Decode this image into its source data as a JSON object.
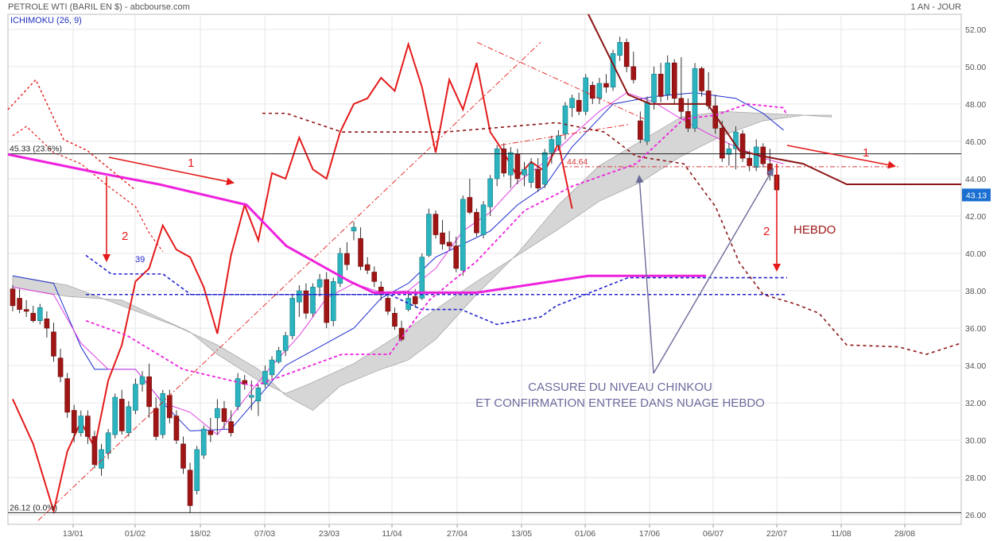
{
  "header": {
    "title": "PETROLE WTI (BARIL EN $) - abcbourse.com",
    "period": "1 AN - JOUR",
    "indicator": "ICHIMOKU (26, 9)"
  },
  "chart_data": {
    "type": "candlestick",
    "ylim": [
      25.5,
      52.8
    ],
    "y_ticks": [
      26,
      28,
      30,
      32,
      34,
      36,
      38,
      40,
      42,
      44,
      46,
      48,
      50,
      52
    ],
    "x_ticks": [
      "13/01",
      "01/02",
      "18/02",
      "07/03",
      "23/03",
      "11/04",
      "27/04",
      "13/05",
      "01/06",
      "17/06",
      "06/07",
      "22/07",
      "11/08",
      "28/08"
    ],
    "last_price": 43.13,
    "levels": [
      {
        "label": "45.33  (23.6%)",
        "value": 45.33
      },
      {
        "label": "26.12  (0.0%)",
        "value": 26.12
      },
      {
        "label": "44.64",
        "value": 44.64
      },
      {
        "label": "39",
        "value": 39
      }
    ],
    "candles": [
      [
        38.1,
        38.3,
        36.9,
        37.2
      ],
      [
        37.6,
        38.1,
        36.8,
        37.0
      ],
      [
        37.0,
        37.5,
        36.6,
        36.9
      ],
      [
        36.8,
        37.2,
        36.3,
        36.4
      ],
      [
        36.4,
        37.3,
        36.2,
        37.1
      ],
      [
        36.5,
        36.9,
        35.5,
        36.0
      ],
      [
        35.8,
        36.3,
        34.2,
        34.5
      ],
      [
        34.4,
        34.9,
        33.1,
        33.4
      ],
      [
        33.3,
        33.6,
        31.2,
        31.5
      ],
      [
        31.6,
        31.9,
        29.9,
        30.4
      ],
      [
        30.4,
        31.6,
        30.2,
        31.3
      ],
      [
        31.3,
        31.6,
        29.8,
        30.2
      ],
      [
        30.2,
        30.5,
        28.5,
        28.7
      ],
      [
        28.5,
        29.8,
        28.1,
        29.5
      ],
      [
        29.3,
        30.6,
        29.0,
        30.4
      ],
      [
        30.3,
        32.5,
        30.1,
        32.3
      ],
      [
        32.2,
        32.7,
        30.3,
        30.5
      ],
      [
        30.4,
        32.1,
        30.2,
        31.8
      ],
      [
        31.6,
        33.3,
        31.4,
        33.0
      ],
      [
        33.0,
        33.7,
        32.6,
        33.4
      ],
      [
        33.4,
        34.1,
        31.2,
        31.8
      ],
      [
        31.7,
        32.3,
        30.0,
        30.2
      ],
      [
        30.3,
        32.7,
        30.1,
        32.5
      ],
      [
        32.4,
        32.7,
        30.9,
        31.2
      ],
      [
        31.3,
        31.6,
        29.8,
        30.0
      ],
      [
        29.8,
        30.2,
        28.2,
        28.5
      ],
      [
        28.4,
        28.8,
        26.1,
        26.5
      ],
      [
        27.3,
        29.7,
        27.1,
        29.5
      ],
      [
        29.2,
        30.8,
        29.0,
        30.6
      ],
      [
        30.5,
        31.2,
        29.9,
        30.3
      ],
      [
        31.2,
        32.2,
        30.3,
        31.7
      ],
      [
        31.7,
        32.1,
        30.6,
        31.0
      ],
      [
        31.0,
        31.6,
        30.2,
        30.4
      ],
      [
        31.8,
        33.6,
        31.6,
        33.3
      ],
      [
        33.2,
        33.5,
        32.7,
        33.0
      ],
      [
        32.3,
        33.2,
        31.6,
        32.4
      ],
      [
        32.1,
        33.0,
        31.3,
        32.8
      ],
      [
        33.0,
        34.0,
        32.8,
        33.7
      ],
      [
        33.5,
        34.5,
        33.3,
        34.3
      ],
      [
        34.2,
        35.0,
        34.1,
        34.8
      ],
      [
        34.8,
        35.8,
        34.5,
        35.6
      ],
      [
        35.6,
        37.8,
        35.4,
        37.6
      ],
      [
        37.4,
        38.3,
        36.6,
        38.0
      ],
      [
        38.0,
        38.4,
        36.5,
        36.8
      ],
      [
        36.8,
        38.4,
        36.6,
        38.2
      ],
      [
        38.2,
        38.9,
        37.7,
        38.6
      ],
      [
        38.6,
        39.0,
        36.0,
        36.3
      ],
      [
        36.4,
        38.7,
        36.1,
        38.5
      ],
      [
        38.4,
        40.3,
        38.2,
        40.0
      ],
      [
        40.0,
        40.6,
        39.1,
        39.4
      ],
      [
        41.2,
        41.7,
        40.7,
        41.4
      ],
      [
        40.8,
        41.4,
        39.1,
        39.3
      ],
      [
        39.4,
        39.8,
        38.9,
        39.1
      ],
      [
        39.0,
        39.3,
        38.2,
        38.5
      ],
      [
        38.2,
        38.5,
        37.5,
        37.8
      ],
      [
        37.6,
        37.9,
        36.7,
        36.9
      ],
      [
        36.8,
        37.1,
        35.9,
        36.1
      ],
      [
        36.0,
        36.4,
        35.3,
        35.4
      ],
      [
        37.0,
        38.0,
        36.9,
        37.6
      ],
      [
        37.7,
        38.1,
        37.1,
        37.3
      ],
      [
        37.6,
        40.0,
        37.5,
        39.8
      ],
      [
        39.9,
        42.4,
        39.8,
        42.1
      ],
      [
        42.1,
        42.3,
        40.8,
        41.0
      ],
      [
        41.1,
        41.8,
        40.2,
        40.5
      ],
      [
        40.6,
        41.2,
        40.2,
        40.4
      ],
      [
        40.4,
        40.9,
        39.0,
        39.2
      ],
      [
        39.1,
        43.1,
        38.8,
        42.9
      ],
      [
        43.0,
        44.0,
        42.1,
        42.2
      ],
      [
        42.2,
        42.4,
        40.9,
        41.1
      ],
      [
        41.0,
        42.8,
        40.8,
        42.6
      ],
      [
        42.5,
        44.2,
        42.0,
        44.0
      ],
      [
        44.0,
        45.8,
        43.6,
        45.6
      ],
      [
        45.6,
        45.9,
        44.1,
        44.3
      ],
      [
        44.2,
        45.7,
        43.5,
        45.4
      ],
      [
        45.3,
        45.6,
        43.7,
        44.0
      ],
      [
        44.2,
        44.9,
        43.6,
        44.5
      ],
      [
        43.8,
        45.1,
        43.5,
        44.8
      ],
      [
        44.5,
        45.1,
        43.3,
        43.5
      ],
      [
        43.7,
        45.6,
        43.5,
        45.4
      ],
      [
        45.4,
        46.3,
        44.8,
        46.1
      ],
      [
        45.8,
        46.6,
        45.5,
        46.3
      ],
      [
        46.4,
        48.1,
        46.1,
        47.9
      ],
      [
        47.8,
        48.5,
        47.3,
        48.3
      ],
      [
        48.2,
        48.6,
        47.4,
        47.6
      ],
      [
        47.6,
        49.6,
        47.4,
        49.4
      ],
      [
        49.0,
        49.2,
        48.0,
        48.3
      ],
      [
        48.3,
        49.4,
        48.0,
        49.1
      ],
      [
        49.1,
        49.6,
        48.6,
        48.9
      ],
      [
        48.9,
        50.9,
        48.7,
        50.7
      ],
      [
        50.6,
        51.6,
        50.3,
        51.3
      ],
      [
        51.3,
        51.5,
        49.7,
        50.0
      ],
      [
        50.0,
        50.8,
        49.1,
        49.3
      ],
      [
        47.1,
        47.6,
        45.9,
        46.1
      ],
      [
        46.0,
        48.4,
        45.8,
        48.1
      ],
      [
        48.1,
        50.0,
        47.7,
        49.6
      ],
      [
        49.6,
        50.2,
        48.1,
        48.4
      ],
      [
        48.5,
        50.6,
        48.2,
        50.2
      ],
      [
        50.2,
        50.4,
        48.0,
        48.3
      ],
      [
        48.3,
        50.5,
        47.2,
        47.6
      ],
      [
        47.6,
        48.3,
        46.5,
        46.7
      ],
      [
        46.7,
        50.2,
        46.5,
        49.9
      ],
      [
        49.9,
        50.0,
        48.4,
        48.7
      ],
      [
        48.7,
        49.7,
        47.7,
        47.9
      ],
      [
        47.9,
        48.5,
        46.4,
        46.7
      ],
      [
        46.7,
        47.1,
        44.9,
        45.1
      ],
      [
        45.3,
        45.9,
        44.7,
        45.6
      ],
      [
        45.6,
        46.8,
        44.5,
        46.5
      ],
      [
        46.4,
        46.6,
        44.9,
        45.1
      ],
      [
        45.1,
        45.5,
        44.4,
        44.7
      ],
      [
        44.6,
        46.1,
        44.4,
        45.7
      ],
      [
        45.7,
        45.9,
        44.6,
        44.8
      ],
      [
        44.8,
        45.6,
        43.9,
        44.2
      ],
      [
        44.2,
        44.6,
        43.1,
        43.4
      ]
    ],
    "lines": {
      "price_close_lead": [
        [
          0,
          32.2
        ],
        [
          3,
          29.8
        ],
        [
          6,
          26.2
        ],
        [
          8,
          29.4
        ],
        [
          10,
          31.0
        ],
        [
          12,
          29.6
        ],
        [
          14,
          33.2
        ],
        [
          16,
          35.1
        ],
        [
          18,
          38.5
        ],
        [
          20,
          39.2
        ],
        [
          22,
          41.5
        ],
        [
          24,
          40.2
        ],
        [
          26,
          39.8
        ],
        [
          28,
          38.2
        ],
        [
          30,
          35.7
        ],
        [
          32,
          39.9
        ],
        [
          34,
          42.6
        ],
        [
          36,
          40.7
        ],
        [
          38,
          44.3
        ],
        [
          40,
          44.0
        ],
        [
          42,
          46.2
        ],
        [
          44,
          44.5
        ],
        [
          46,
          44.0
        ],
        [
          48,
          46.5
        ],
        [
          50,
          48.0
        ],
        [
          52,
          48.3
        ],
        [
          54,
          49.4
        ],
        [
          56,
          48.7
        ],
        [
          58,
          51.2
        ],
        [
          60,
          48.9
        ],
        [
          62,
          45.4
        ],
        [
          64,
          49.3
        ],
        [
          66,
          47.7
        ],
        [
          68,
          50.2
        ],
        [
          70,
          46.5
        ],
        [
          72,
          45.4
        ],
        [
          74,
          44.1
        ],
        [
          76,
          44.9
        ],
        [
          78,
          44.4
        ],
        [
          80,
          45.9
        ],
        [
          82,
          42.4
        ]
      ],
      "tenkan": [
        [
          0,
          38.2
        ],
        [
          6,
          37.8
        ],
        [
          10,
          35.2
        ],
        [
          14,
          33.8
        ],
        [
          18,
          33.8
        ],
        [
          22,
          32.0
        ],
        [
          26,
          31.5
        ],
        [
          30,
          30.3
        ],
        [
          34,
          32.2
        ],
        [
          38,
          34.0
        ],
        [
          42,
          35.6
        ],
        [
          46,
          37.6
        ],
        [
          50,
          38.4
        ],
        [
          54,
          37.9
        ],
        [
          58,
          38.0
        ],
        [
          62,
          39.2
        ],
        [
          66,
          41.2
        ],
        [
          70,
          42.2
        ],
        [
          74,
          43.8
        ],
        [
          78,
          44.9
        ],
        [
          82,
          46.3
        ],
        [
          86,
          47.6
        ],
        [
          90,
          48.6
        ],
        [
          94,
          48.1
        ],
        [
          98,
          47.2
        ],
        [
          102,
          46.4
        ],
        [
          106,
          45.7
        ],
        [
          110,
          45.1
        ],
        [
          113,
          44.8
        ]
      ],
      "kijun": [
        [
          0,
          38.8
        ],
        [
          6,
          38.4
        ],
        [
          10,
          35.0
        ],
        [
          12,
          33.8
        ],
        [
          18,
          33.8
        ],
        [
          22,
          32.0
        ],
        [
          26,
          30.5
        ],
        [
          32,
          30.6
        ],
        [
          36,
          32.3
        ],
        [
          40,
          34.0
        ],
        [
          46,
          35.2
        ],
        [
          50,
          36.0
        ],
        [
          54,
          37.6
        ],
        [
          58,
          38.4
        ],
        [
          62,
          39.8
        ],
        [
          66,
          40.5
        ],
        [
          70,
          41.2
        ],
        [
          74,
          42.6
        ],
        [
          78,
          43.6
        ],
        [
          82,
          45.7
        ],
        [
          88,
          48.0
        ],
        [
          94,
          48.4
        ],
        [
          100,
          48.6
        ],
        [
          106,
          48.3
        ],
        [
          110,
          47.5
        ],
        [
          113,
          46.6
        ]
      ],
      "senkou_a": [
        [
          0,
          38.2
        ],
        [
          8,
          37.7
        ],
        [
          16,
          37.5
        ],
        [
          20,
          36.8
        ],
        [
          26,
          35.8
        ],
        [
          30,
          34.6
        ],
        [
          36,
          33.2
        ],
        [
          40,
          32.5
        ],
        [
          44,
          33.1
        ],
        [
          50,
          34.1
        ],
        [
          56,
          35.5
        ],
        [
          62,
          37.0
        ],
        [
          68,
          38.5
        ],
        [
          74,
          39.9
        ],
        [
          80,
          41.3
        ],
        [
          86,
          42.8
        ],
        [
          92,
          43.8
        ],
        [
          98,
          45.2
        ],
        [
          104,
          46.3
        ],
        [
          110,
          47.1
        ],
        [
          116,
          47.4
        ],
        [
          120,
          47.3
        ]
      ],
      "senkou_b": [
        [
          0,
          38.8
        ],
        [
          8,
          38.3
        ],
        [
          16,
          37.2
        ],
        [
          24,
          36.1
        ],
        [
          30,
          35.1
        ],
        [
          36,
          33.8
        ],
        [
          40,
          32.4
        ],
        [
          44,
          31.6
        ],
        [
          48,
          32.9
        ],
        [
          54,
          33.8
        ],
        [
          58,
          34.3
        ],
        [
          62,
          35.4
        ],
        [
          68,
          37.8
        ],
        [
          74,
          40.0
        ],
        [
          80,
          42.6
        ],
        [
          86,
          44.7
        ],
        [
          92,
          46.0
        ],
        [
          98,
          47.3
        ],
        [
          104,
          47.6
        ],
        [
          110,
          47.5
        ],
        [
          116,
          47.4
        ],
        [
          120,
          47.4
        ]
      ],
      "chikou": [
        [
          0,
          46.3
        ],
        [
          2,
          46.8
        ],
        [
          6,
          45.4
        ],
        [
          10,
          44.8
        ],
        [
          14,
          43.6
        ],
        [
          18,
          42.5
        ],
        [
          20,
          41.1
        ],
        [
          22,
          40.1
        ]
      ]
    }
  }
}
